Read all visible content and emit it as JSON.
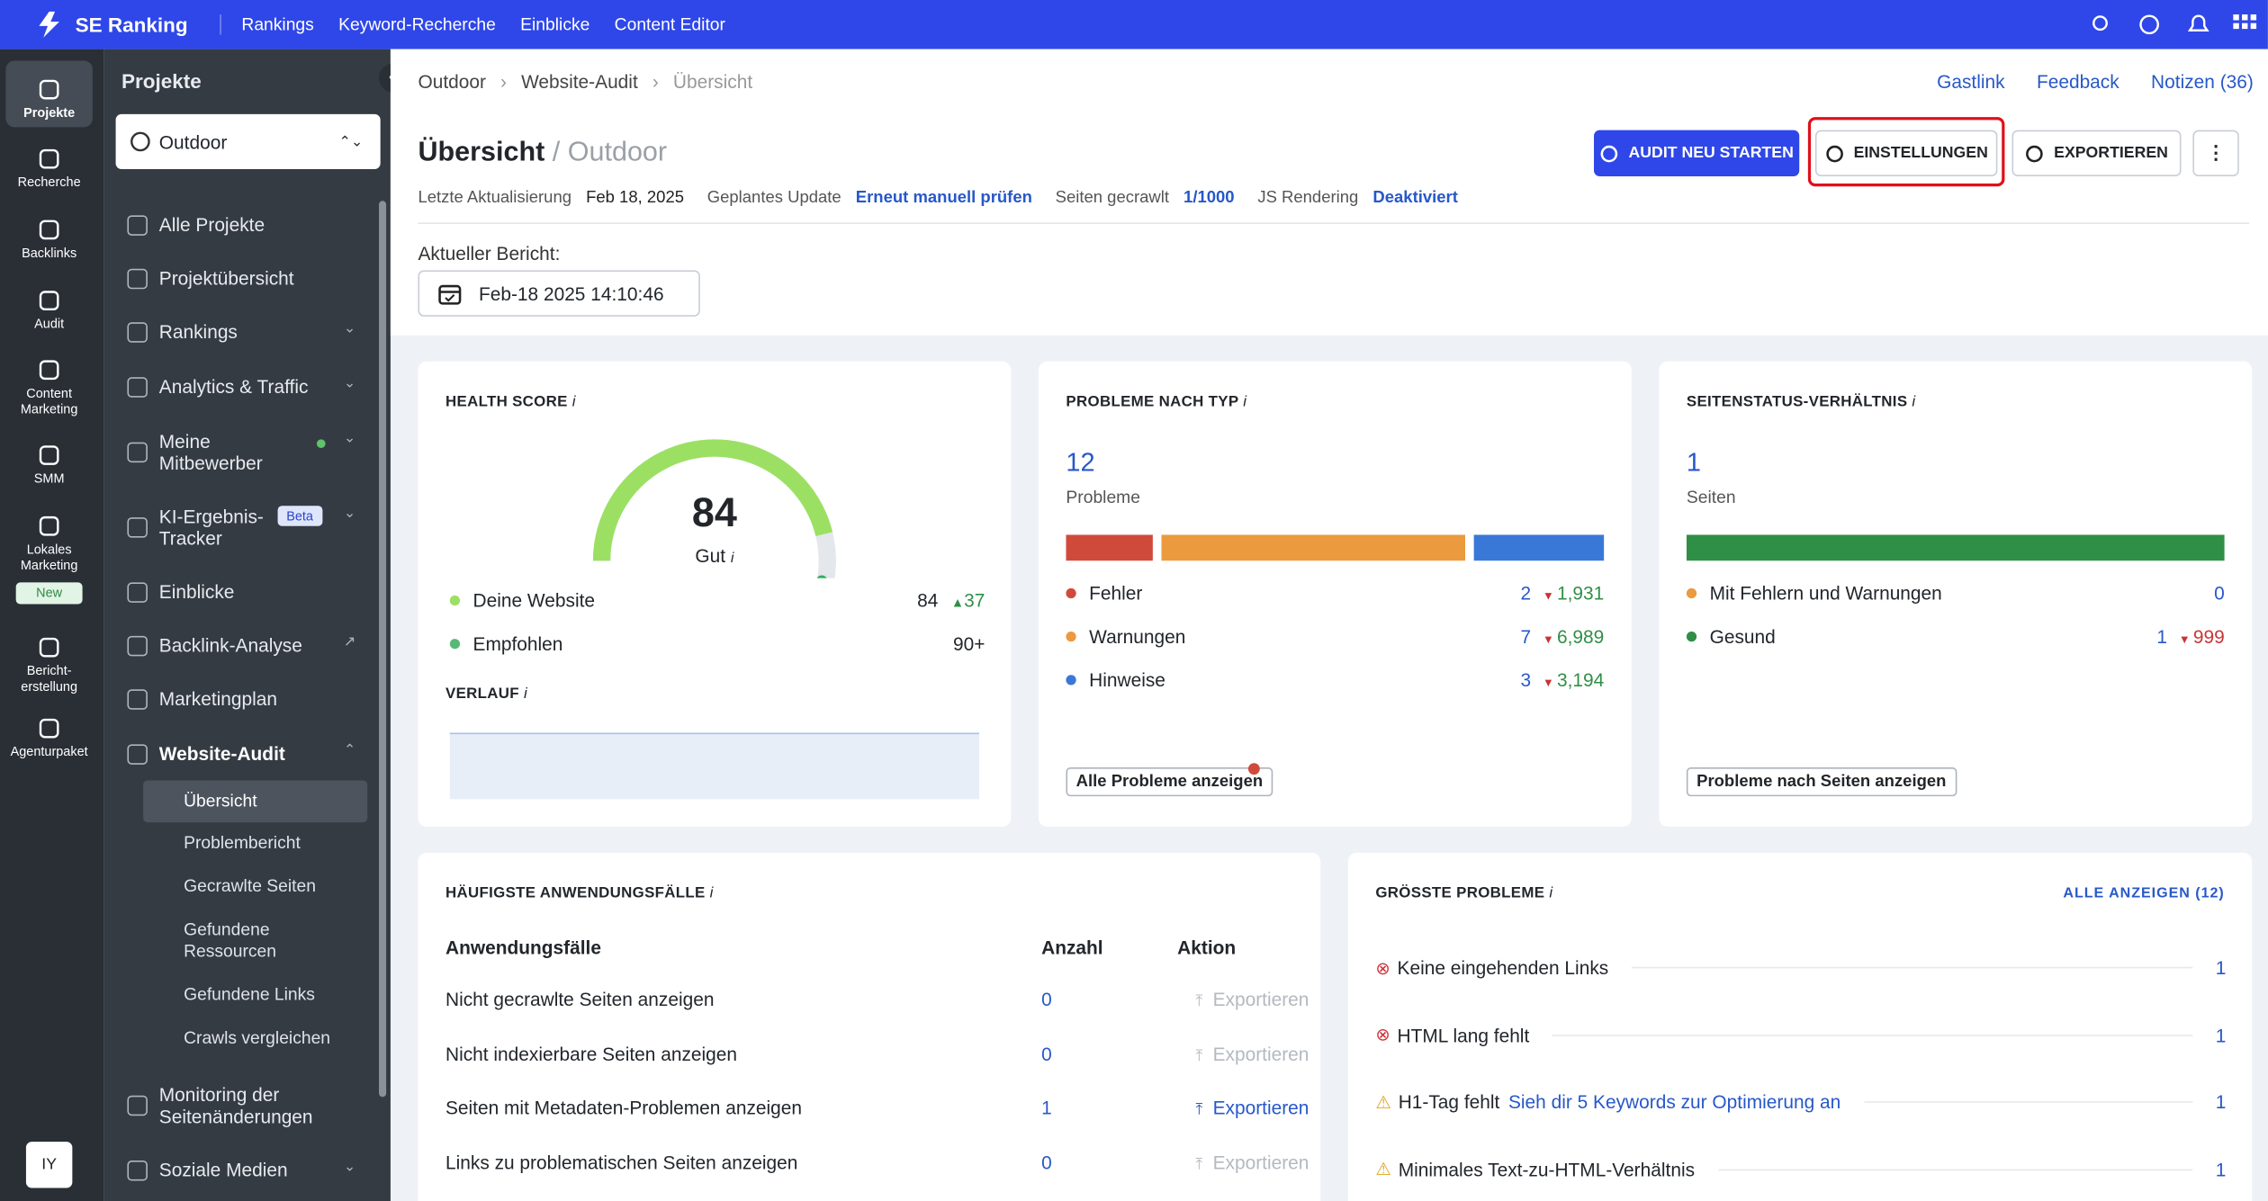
{
  "topbar": {
    "brand": "SE Ranking",
    "nav": [
      "Rankings",
      "Keyword-Recherche",
      "Einblicke",
      "Content Editor"
    ]
  },
  "rail": {
    "items": [
      "Projekte",
      "Recherche",
      "Backlinks",
      "Audit",
      "Content Marketing",
      "SMM",
      "Lokales Marketing",
      "Bericht-erstellung",
      "Agenturpaket"
    ],
    "badge": "New",
    "avatar": "IY"
  },
  "sidebar": {
    "title": "Projekte",
    "project": "Outdoor",
    "beta": "Beta",
    "items": [
      "Alle Projekte",
      "Projektübersicht",
      "Rankings",
      "Analytics & Traffic",
      "Meine Mitbewerber",
      "KI-Ergebnis-Tracker",
      "Einblicke",
      "Backlink-Analyse",
      "Marketingplan",
      "Website-Audit"
    ],
    "subitems": [
      "Übersicht",
      "Problembericht",
      "Gecrawlte Seiten",
      "Gefundene Ressourcen",
      "Gefundene Links",
      "Crawls vergleichen"
    ],
    "bottom_items": [
      "Monitoring der Seitenänderungen",
      "Soziale Medien"
    ]
  },
  "breadcrumb": [
    "Outdoor",
    "Website-Audit",
    "Übersicht"
  ],
  "header_links": [
    "Gastlink",
    "Feedback",
    "Notizen (36)"
  ],
  "header": {
    "title": "Übersicht",
    "subtitle": "/ Outdoor",
    "buttons": [
      "AUDIT NEU STARTEN",
      "EINSTELLUNGEN",
      "EXPORTIEREN"
    ],
    "meta": [
      [
        "Letzte Aktualisierung",
        "Feb 18, 2025"
      ],
      [
        "Geplantes Update",
        "Erneut manuell prüfen"
      ],
      [
        "Seiten gecrawlt",
        "1/1000"
      ],
      [
        "JS Rendering",
        "Deaktiviert"
      ]
    ],
    "report_label": "Aktueller Bericht:",
    "report_date": "Feb-18 2025 14:10:46"
  },
  "health": {
    "title": "HEALTH SCORE",
    "score": 84,
    "rating": "Gut",
    "legend": [
      {
        "name": "Deine Website",
        "value": "84",
        "delta": "37"
      },
      {
        "name": "Empfohlen",
        "value": "90+"
      }
    ],
    "history_title": "VERLAUF"
  },
  "issues": {
    "title": "PROBLEME NACH TYP",
    "total": 12,
    "total_label": "Probleme",
    "rows": [
      {
        "name": "Fehler",
        "value": 2,
        "delta": "1,931",
        "color": "#d04a3c"
      },
      {
        "name": "Warnungen",
        "value": 7,
        "delta": "6,989",
        "color": "#eb9a3e"
      },
      {
        "name": "Hinweise",
        "value": 3,
        "delta": "3,194",
        "color": "#3a78d8"
      }
    ],
    "button": "Alle Probleme anzeigen"
  },
  "status": {
    "title": "SEITENSTATUS-VERHÄLTNIS",
    "total": 1,
    "total_label": "Seiten",
    "rows": [
      {
        "name": "Mit Fehlern und Warnungen",
        "value": 0,
        "color": "#eb9a3e"
      },
      {
        "name": "Gesund",
        "value": 1,
        "delta": "999",
        "color": "#2f8f46"
      }
    ],
    "button": "Probleme nach Seiten anzeigen"
  },
  "usecases": {
    "title": "HÄUFIGSTE ANWENDUNGSFÄLLE",
    "columns": [
      "Anwendungsfälle",
      "Anzahl",
      "Aktion"
    ],
    "rows": [
      [
        "Nicht gecrawlte Seiten anzeigen",
        "0",
        "Exportieren"
      ],
      [
        "Nicht indexierbare Seiten anzeigen",
        "0",
        "Exportieren"
      ],
      [
        "Seiten mit Metadaten-Problemen anzeigen",
        "1",
        "Exportieren"
      ],
      [
        "Links zu problematischen Seiten anzeigen",
        "0",
        "Exportieren"
      ]
    ]
  },
  "top_issues": {
    "title": "GRÖSSTE PROBLEME",
    "link": "ALLE ANZEIGEN (12)",
    "rows": [
      {
        "name": "Keine eingehenden Links",
        "count": "1",
        "kind": "error"
      },
      {
        "name": "HTML lang fehlt",
        "count": "1",
        "kind": "error"
      },
      {
        "name": "H1-Tag fehlt",
        "hint": "Sieh dir 5 Keywords zur Optimierung an",
        "count": "1",
        "kind": "warning"
      },
      {
        "name": "Minimales Text-zu-HTML-Verhältnis",
        "count": "1",
        "kind": "warning"
      }
    ]
  }
}
